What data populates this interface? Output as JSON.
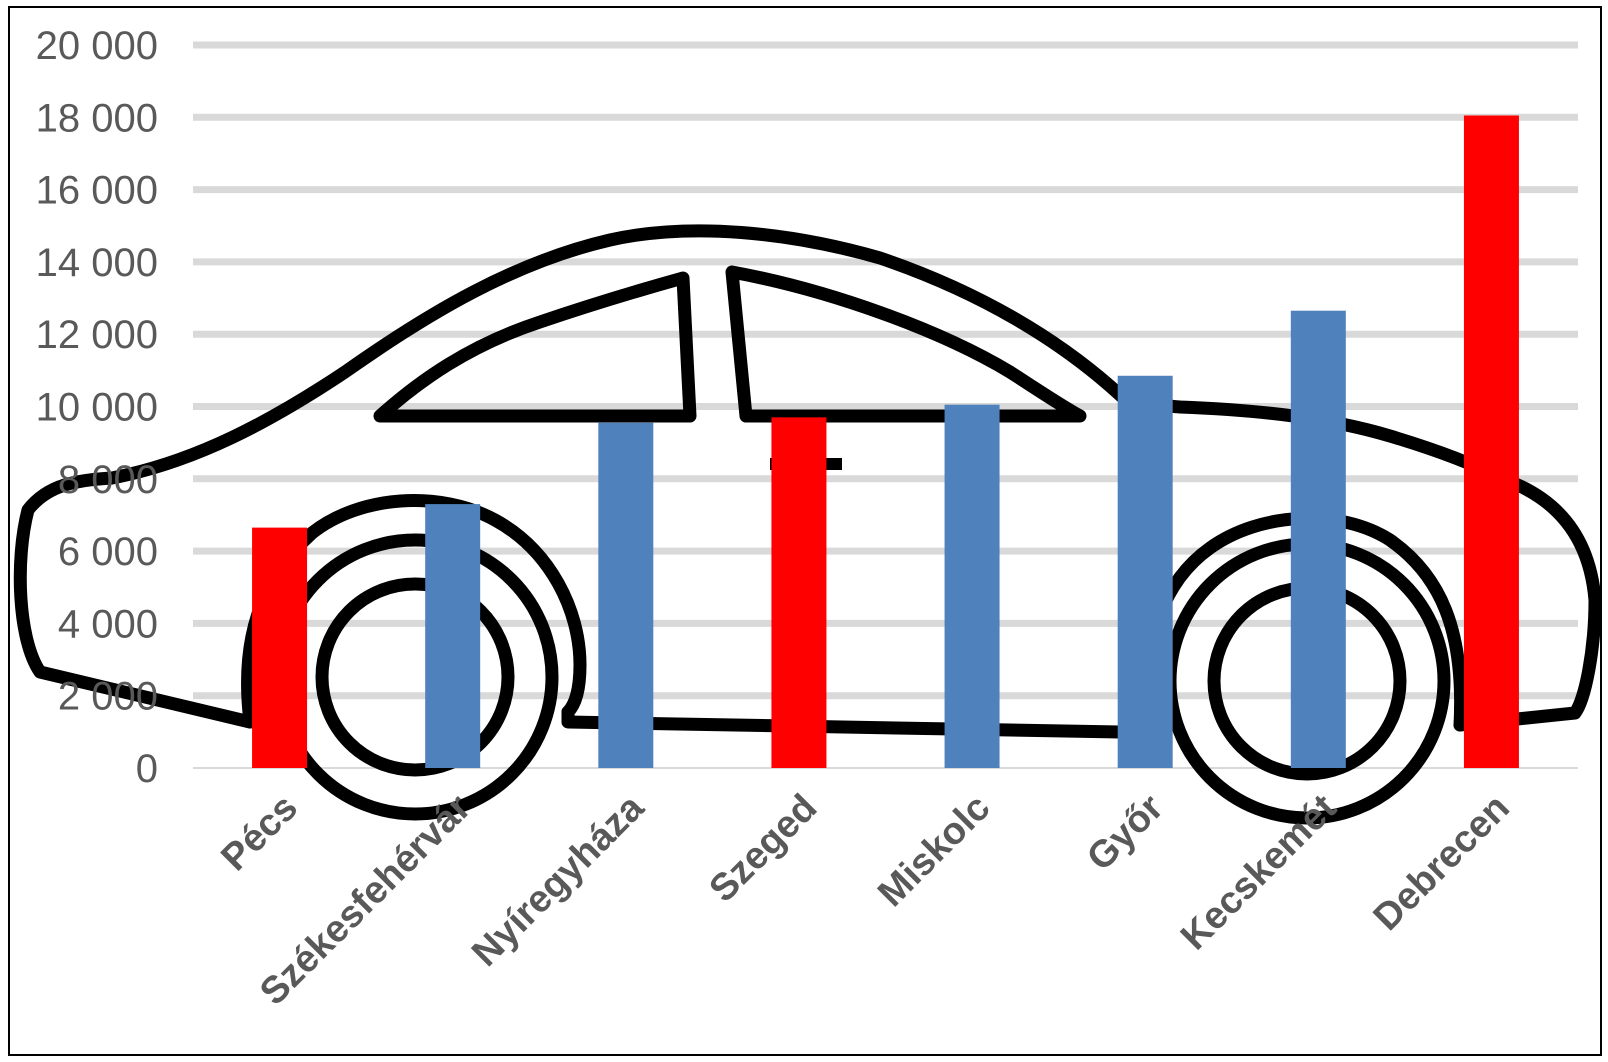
{
  "chart_data": {
    "type": "bar",
    "title": "",
    "xlabel": "",
    "ylabel": "",
    "categories": [
      "Pécs",
      "Székesfehérvár",
      "Nyíregyháza",
      "Szeged",
      "Miskolc",
      "Győr",
      "Kecskemét",
      "Debrecen"
    ],
    "values": [
      6650,
      7300,
      9550,
      9700,
      10050,
      10850,
      12650,
      18050
    ],
    "bar_colors": [
      "#ff0000",
      "#4f81bd",
      "#4f81bd",
      "#ff0000",
      "#4f81bd",
      "#4f81bd",
      "#4f81bd",
      "#ff0000"
    ],
    "ylim": [
      0,
      20000
    ],
    "y_ticks": [
      0,
      2000,
      4000,
      6000,
      8000,
      10000,
      12000,
      14000,
      16000,
      18000,
      20000
    ],
    "y_tick_labels": [
      "0",
      "2 000",
      "4 000",
      "6 000",
      "8 000",
      "10 000",
      "12 000",
      "14 000",
      "16 000",
      "18 000",
      "20 000"
    ],
    "grid": true,
    "legend": "none"
  },
  "colors": {
    "gridline": "#d9d9d9",
    "tick_text": "#595959",
    "category_text": "#595959",
    "car_outline": "#000000",
    "red": "#ff0000",
    "blue": "#4f81bd"
  },
  "icons": {
    "background": "car-outline-icon"
  }
}
